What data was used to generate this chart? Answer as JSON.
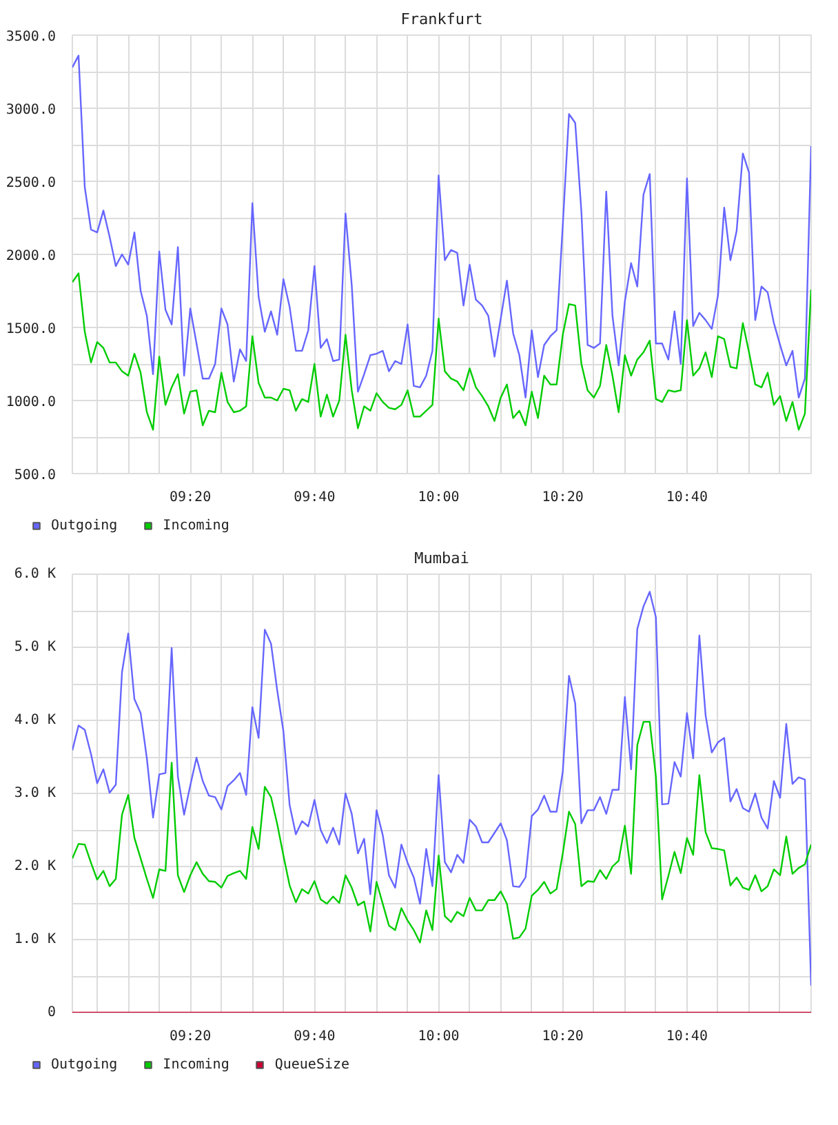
{
  "chart_data": [
    {
      "type": "line",
      "title": "Frankfurt",
      "x": [
        9.0167,
        9.0333,
        9.05,
        9.0667,
        9.0833,
        9.1,
        9.1167,
        9.1333,
        9.15,
        9.1667,
        9.1833,
        9.2,
        9.2167,
        9.2333,
        9.25,
        9.2667,
        9.2833,
        9.3,
        9.3167,
        9.3333,
        9.35,
        9.3667,
        9.3833,
        9.4,
        9.4167,
        9.4333,
        9.45,
        9.4667,
        9.4833,
        9.5,
        9.5167,
        9.5333,
        9.55,
        9.5667,
        9.5833,
        9.6,
        9.6167,
        9.6333,
        9.65,
        9.6667,
        9.6833,
        9.7,
        9.7167,
        9.7333,
        9.75,
        9.7667,
        9.7833,
        9.8,
        9.8167,
        9.8333,
        9.85,
        9.8667,
        9.8833,
        9.9,
        9.9167,
        9.9333,
        9.95,
        9.9667,
        9.9833,
        10,
        10.0167,
        10.0333,
        10.05,
        10.0667,
        10.0833,
        10.1,
        10.1167,
        10.1333,
        10.15,
        10.1667,
        10.1833,
        10.2,
        10.2167,
        10.2333,
        10.25,
        10.2667,
        10.2833,
        10.3,
        10.3167,
        10.3333,
        10.35,
        10.3667,
        10.3833,
        10.4,
        10.4167,
        10.4333,
        10.45,
        10.4667,
        10.4833,
        10.5,
        10.5167,
        10.5333,
        10.55,
        10.5667,
        10.5833,
        10.6,
        10.6167,
        10.6333,
        10.65,
        10.6667,
        10.6833,
        10.7,
        10.7167,
        10.7333,
        10.75,
        10.7667,
        10.7833,
        10.8,
        10.8167,
        10.8333,
        10.85,
        10.8667,
        10.8833,
        10.9,
        10.9167,
        10.9333,
        10.95,
        10.9667,
        10.9833,
        11
      ],
      "series": [
        {
          "name": "Outgoing",
          "color": "#6666ff",
          "values": [
            3280,
            3360,
            2460,
            2170,
            2150,
            2300,
            2120,
            1920,
            2000,
            1930,
            2150,
            1750,
            1580,
            1180,
            2020,
            1620,
            1520,
            2050,
            1170,
            1630,
            1390,
            1150,
            1150,
            1250,
            1630,
            1520,
            1130,
            1350,
            1270,
            2350,
            1710,
            1470,
            1610,
            1450,
            1830,
            1640,
            1340,
            1340,
            1480,
            1920,
            1360,
            1420,
            1270,
            1280,
            2280,
            1790,
            1060,
            1180,
            1310,
            1320,
            1340,
            1200,
            1270,
            1250,
            1520,
            1100,
            1090,
            1170,
            1340,
            2540,
            1960,
            2030,
            2010,
            1650,
            1930,
            1690,
            1650,
            1580,
            1300,
            1560,
            1820,
            1460,
            1310,
            1020,
            1480,
            1160,
            1380,
            1440,
            1480,
            2200,
            2960,
            2900,
            2290,
            1380,
            1360,
            1390,
            2430,
            1580,
            1240,
            1680,
            1940,
            1780,
            2410,
            2550,
            1390,
            1390,
            1280,
            1610,
            1250,
            2520,
            1510,
            1600,
            1550,
            1490,
            1720,
            2320,
            1960,
            2160,
            2690,
            2560,
            1550,
            1780,
            1740,
            1530,
            1380,
            1240,
            1340,
            1020,
            1150,
            2740
          ]
        },
        {
          "name": "Incoming",
          "color": "#00cc00",
          "values": [
            1810,
            1870,
            1470,
            1260,
            1400,
            1360,
            1260,
            1260,
            1200,
            1170,
            1320,
            1190,
            920,
            800,
            1300,
            970,
            1090,
            1180,
            910,
            1060,
            1070,
            830,
            930,
            920,
            1190,
            990,
            920,
            930,
            960,
            1440,
            1120,
            1020,
            1020,
            1000,
            1080,
            1070,
            930,
            1010,
            990,
            1250,
            890,
            1040,
            890,
            1000,
            1450,
            1070,
            810,
            960,
            930,
            1050,
            990,
            950,
            940,
            970,
            1070,
            890,
            890,
            930,
            970,
            1560,
            1200,
            1150,
            1130,
            1070,
            1220,
            1090,
            1030,
            960,
            860,
            1020,
            1110,
            880,
            930,
            830,
            1060,
            880,
            1170,
            1110,
            1110,
            1450,
            1660,
            1650,
            1250,
            1070,
            1020,
            1100,
            1380,
            1170,
            920,
            1310,
            1170,
            1280,
            1330,
            1410,
            1010,
            990,
            1070,
            1060,
            1070,
            1550,
            1170,
            1220,
            1330,
            1160,
            1440,
            1420,
            1230,
            1220,
            1530,
            1330,
            1110,
            1090,
            1190,
            970,
            1030,
            860,
            990,
            800,
            910,
            1760
          ]
        }
      ],
      "xlim": [
        9.0167,
        11
      ],
      "xticks": [
        {
          "value": 9.0833,
          "label": null
        },
        {
          "value": 9.1667,
          "label": null
        },
        {
          "value": 9.25,
          "label": null
        },
        {
          "value": 9.3333,
          "label": "09:20"
        },
        {
          "value": 9.4167,
          "label": null
        },
        {
          "value": 9.5,
          "label": null
        },
        {
          "value": 9.5833,
          "label": null
        },
        {
          "value": 9.6667,
          "label": "09:40"
        },
        {
          "value": 9.75,
          "label": null
        },
        {
          "value": 9.8333,
          "label": null
        },
        {
          "value": 9.9167,
          "label": null
        },
        {
          "value": 10,
          "label": "10:00"
        },
        {
          "value": 10.0833,
          "label": null
        },
        {
          "value": 10.1667,
          "label": null
        },
        {
          "value": 10.25,
          "label": null
        },
        {
          "value": 10.3333,
          "label": "10:20"
        },
        {
          "value": 10.4167,
          "label": null
        },
        {
          "value": 10.5,
          "label": null
        },
        {
          "value": 10.5833,
          "label": null
        },
        {
          "value": 10.6667,
          "label": "10:40"
        },
        {
          "value": 10.75,
          "label": null
        },
        {
          "value": 10.8333,
          "label": null
        },
        {
          "value": 10.9167,
          "label": null
        }
      ],
      "ylim": [
        500,
        3500
      ],
      "yticks": [
        {
          "value": 500,
          "label": "500.0"
        },
        {
          "value": 750,
          "label": null
        },
        {
          "value": 1000,
          "label": "1000.0"
        },
        {
          "value": 1250,
          "label": null
        },
        {
          "value": 1500,
          "label": "1500.0"
        },
        {
          "value": 1750,
          "label": null
        },
        {
          "value": 2000,
          "label": "2000.0"
        },
        {
          "value": 2250,
          "label": null
        },
        {
          "value": 2500,
          "label": "2500.0"
        },
        {
          "value": 2750,
          "label": null
        },
        {
          "value": 3000,
          "label": "3000.0"
        },
        {
          "value": 3250,
          "label": null
        },
        {
          "value": 3500,
          "label": "3500.0"
        }
      ],
      "grid": true,
      "legend": "bottom"
    },
    {
      "type": "line",
      "title": "Mumbai",
      "x": [
        9.0167,
        9.0333,
        9.05,
        9.0667,
        9.0833,
        9.1,
        9.1167,
        9.1333,
        9.15,
        9.1667,
        9.1833,
        9.2,
        9.2167,
        9.2333,
        9.25,
        9.2667,
        9.2833,
        9.3,
        9.3167,
        9.3333,
        9.35,
        9.3667,
        9.3833,
        9.4,
        9.4167,
        9.4333,
        9.45,
        9.4667,
        9.4833,
        9.5,
        9.5167,
        9.5333,
        9.55,
        9.5667,
        9.5833,
        9.6,
        9.6167,
        9.6333,
        9.65,
        9.6667,
        9.6833,
        9.7,
        9.7167,
        9.7333,
        9.75,
        9.7667,
        9.7833,
        9.8,
        9.8167,
        9.8333,
        9.85,
        9.8667,
        9.8833,
        9.9,
        9.9167,
        9.9333,
        9.95,
        9.9667,
        9.9833,
        10,
        10.0167,
        10.0333,
        10.05,
        10.0667,
        10.0833,
        10.1,
        10.1167,
        10.1333,
        10.15,
        10.1667,
        10.1833,
        10.2,
        10.2167,
        10.2333,
        10.25,
        10.2667,
        10.2833,
        10.3,
        10.3167,
        10.3333,
        10.35,
        10.3667,
        10.3833,
        10.4,
        10.4167,
        10.4333,
        10.45,
        10.4667,
        10.4833,
        10.5,
        10.5167,
        10.5333,
        10.55,
        10.5667,
        10.5833,
        10.6,
        10.6167,
        10.6333,
        10.65,
        10.6667,
        10.6833,
        10.7,
        10.7167,
        10.7333,
        10.75,
        10.7667,
        10.7833,
        10.8,
        10.8167,
        10.8333,
        10.85,
        10.8667,
        10.8833,
        10.9,
        10.9167,
        10.9333,
        10.95,
        10.9667,
        10.9833,
        11
      ],
      "series": [
        {
          "name": "Outgoing",
          "color": "#6666ff",
          "values": [
            3590,
            3930,
            3870,
            3540,
            3140,
            3330,
            3010,
            3120,
            4660,
            5190,
            4290,
            4100,
            3480,
            2670,
            3260,
            3280,
            4990,
            3230,
            2710,
            3110,
            3490,
            3170,
            2970,
            2950,
            2780,
            3100,
            3180,
            3280,
            2980,
            4180,
            3760,
            5240,
            5050,
            4410,
            3850,
            2840,
            2440,
            2620,
            2550,
            2910,
            2500,
            2320,
            2530,
            2300,
            3000,
            2720,
            2180,
            2380,
            1620,
            2770,
            2430,
            1880,
            1710,
            2300,
            2050,
            1850,
            1490,
            2240,
            1730,
            3250,
            2060,
            1920,
            2160,
            2050,
            2640,
            2550,
            2330,
            2330,
            2460,
            2590,
            2360,
            1730,
            1720,
            1850,
            2690,
            2780,
            2970,
            2750,
            2750,
            3300,
            4610,
            4230,
            2590,
            2770,
            2770,
            2950,
            2720,
            3050,
            3050,
            4320,
            3330,
            5250,
            5560,
            5760,
            5410,
            2850,
            2860,
            3430,
            3230,
            4100,
            3480,
            5160,
            4070,
            3560,
            3700,
            3760,
            2890,
            3060,
            2800,
            2750,
            3000,
            2670,
            2520,
            3170,
            2940,
            3950,
            3130,
            3220,
            3190,
            370
          ]
        },
        {
          "name": "Incoming",
          "color": "#00cc00",
          "values": [
            2110,
            2310,
            2300,
            2050,
            1820,
            1940,
            1730,
            1830,
            2710,
            2980,
            2390,
            2110,
            1830,
            1570,
            1960,
            1940,
            3420,
            1880,
            1650,
            1880,
            2060,
            1900,
            1800,
            1790,
            1710,
            1870,
            1910,
            1940,
            1830,
            2540,
            2240,
            3090,
            2950,
            2580,
            2150,
            1740,
            1510,
            1690,
            1630,
            1800,
            1550,
            1490,
            1590,
            1500,
            1880,
            1710,
            1470,
            1520,
            1110,
            1790,
            1490,
            1190,
            1130,
            1430,
            1260,
            1130,
            960,
            1400,
            1130,
            2150,
            1320,
            1240,
            1380,
            1320,
            1570,
            1400,
            1400,
            1540,
            1540,
            1660,
            1490,
            1010,
            1030,
            1150,
            1600,
            1680,
            1790,
            1630,
            1690,
            2180,
            2750,
            2580,
            1730,
            1800,
            1790,
            1950,
            1830,
            2000,
            2080,
            2560,
            1900,
            3660,
            3980,
            3980,
            3230,
            1550,
            1870,
            2200,
            1910,
            2390,
            2160,
            3250,
            2470,
            2250,
            2240,
            2220,
            1740,
            1850,
            1710,
            1680,
            1880,
            1660,
            1730,
            1960,
            1880,
            2410,
            1900,
            1980,
            2030,
            2300
          ]
        },
        {
          "name": "QueueSize",
          "color": "#cc0033",
          "values": [
            0,
            0,
            0,
            0,
            0,
            0,
            0,
            0,
            0,
            0,
            0,
            0,
            0,
            0,
            0,
            0,
            0,
            0,
            0,
            0,
            0,
            0,
            0,
            0,
            0,
            0,
            0,
            0,
            0,
            0,
            0,
            0,
            0,
            0,
            0,
            0,
            0,
            0,
            0,
            0,
            0,
            0,
            0,
            0,
            0,
            0,
            0,
            0,
            0,
            0,
            0,
            0,
            0,
            0,
            0,
            0,
            0,
            0,
            0,
            0,
            0,
            0,
            0,
            0,
            0,
            0,
            0,
            0,
            0,
            0,
            0,
            0,
            0,
            0,
            0,
            0,
            0,
            0,
            0,
            0,
            0,
            0,
            0,
            0,
            0,
            0,
            0,
            0,
            0,
            0,
            0,
            0,
            0,
            0,
            0,
            0,
            0,
            0,
            0,
            0,
            0,
            0,
            0,
            0,
            0,
            0,
            0,
            0,
            0,
            0,
            0,
            0,
            0,
            0,
            0,
            0,
            0,
            0,
            0,
            0
          ]
        }
      ],
      "xlim": [
        9.0167,
        11
      ],
      "xticks": [
        {
          "value": 9.0833,
          "label": null
        },
        {
          "value": 9.1667,
          "label": null
        },
        {
          "value": 9.25,
          "label": null
        },
        {
          "value": 9.3333,
          "label": "09:20"
        },
        {
          "value": 9.4167,
          "label": null
        },
        {
          "value": 9.5,
          "label": null
        },
        {
          "value": 9.5833,
          "label": null
        },
        {
          "value": 9.6667,
          "label": "09:40"
        },
        {
          "value": 9.75,
          "label": null
        },
        {
          "value": 9.8333,
          "label": null
        },
        {
          "value": 9.9167,
          "label": null
        },
        {
          "value": 10,
          "label": "10:00"
        },
        {
          "value": 10.0833,
          "label": null
        },
        {
          "value": 10.1667,
          "label": null
        },
        {
          "value": 10.25,
          "label": null
        },
        {
          "value": 10.3333,
          "label": "10:20"
        },
        {
          "value": 10.4167,
          "label": null
        },
        {
          "value": 10.5,
          "label": null
        },
        {
          "value": 10.5833,
          "label": null
        },
        {
          "value": 10.6667,
          "label": "10:40"
        },
        {
          "value": 10.75,
          "label": null
        },
        {
          "value": 10.8333,
          "label": null
        },
        {
          "value": 10.9167,
          "label": null
        }
      ],
      "ylim": [
        0,
        6000
      ],
      "yticks": [
        0,
        {
          "value": 500,
          "label": null
        },
        {
          "value": 1000,
          "label": "1.0 K"
        },
        {
          "value": 1500,
          "label": null
        },
        {
          "value": 2000,
          "label": "2.0 K"
        },
        {
          "value": 2500,
          "label": null
        },
        {
          "value": 3000,
          "label": "3.0 K"
        },
        {
          "value": 3500,
          "label": null
        },
        {
          "value": 4000,
          "label": "4.0 K"
        },
        {
          "value": 4500,
          "label": null
        },
        {
          "value": 5000,
          "label": "5.0 K"
        },
        {
          "value": 5500,
          "label": null
        },
        {
          "value": 6000,
          "label": "6.0 K"
        }
      ],
      "grid": true,
      "legend": "bottom"
    }
  ]
}
